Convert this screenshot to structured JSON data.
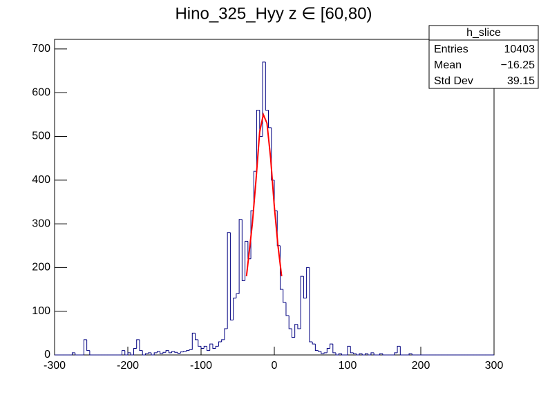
{
  "chart_data": {
    "type": "histogram",
    "title": "Hino_325_Hyy z  ∈ [60,80)",
    "bins": [
      -300,
      -296,
      -292,
      -288,
      -284,
      -280,
      -276,
      -272,
      -268,
      -264,
      -260,
      -256,
      -252,
      -248,
      -244,
      -240,
      -236,
      -232,
      -228,
      -224,
      -220,
      -216,
      -212,
      -208,
      -204,
      -200,
      -196,
      -192,
      -188,
      -184,
      -180,
      -176,
      -172,
      -168,
      -164,
      -160,
      -156,
      -152,
      -148,
      -144,
      -140,
      -136,
      -132,
      -128,
      -124,
      -120,
      -116,
      -112,
      -108,
      -104,
      -100,
      -96,
      -92,
      -88,
      -84,
      -80,
      -76,
      -72,
      -68,
      -64,
      -60,
      -56,
      -52,
      -48,
      -44,
      -40,
      -36,
      -32,
      -28,
      -24,
      -20,
      -16,
      -12,
      -8,
      -4,
      0,
      4,
      8,
      12,
      16,
      20,
      24,
      28,
      32,
      36,
      40,
      44,
      48,
      52,
      56,
      60,
      64,
      68,
      72,
      76,
      80,
      84,
      88,
      92,
      96,
      100,
      104,
      108,
      112,
      116,
      120,
      124,
      128,
      132,
      136,
      140,
      144,
      148,
      152,
      156,
      160,
      164,
      168,
      172,
      176,
      180,
      184,
      188,
      192,
      196,
      200,
      204,
      208,
      212,
      216,
      220,
      224,
      228,
      232,
      236,
      240,
      244,
      248,
      252,
      256,
      260,
      264,
      268,
      272,
      276,
      280,
      284,
      288,
      292,
      296,
      300
    ],
    "values": [
      0,
      0,
      0,
      0,
      0,
      0,
      5,
      0,
      0,
      0,
      35,
      10,
      0,
      0,
      0,
      0,
      0,
      0,
      0,
      0,
      0,
      0,
      0,
      10,
      0,
      5,
      0,
      15,
      35,
      10,
      0,
      3,
      5,
      0,
      5,
      8,
      3,
      6,
      10,
      5,
      8,
      6,
      4,
      7,
      8,
      10,
      12,
      50,
      35,
      20,
      15,
      20,
      10,
      25,
      15,
      20,
      30,
      35,
      60,
      280,
      80,
      130,
      140,
      310,
      170,
      260,
      220,
      330,
      420,
      560,
      500,
      670,
      560,
      520,
      400,
      330,
      250,
      150,
      120,
      90,
      60,
      40,
      70,
      60,
      180,
      130,
      200,
      30,
      25,
      10,
      8,
      3,
      5,
      15,
      25,
      5,
      0,
      3,
      0,
      0,
      20,
      5,
      3,
      0,
      3,
      0,
      3,
      0,
      5,
      0,
      0,
      3,
      0,
      0,
      0,
      0,
      5,
      20,
      0,
      0,
      0,
      3,
      0,
      0,
      0,
      0,
      0,
      0,
      0,
      0,
      0,
      0,
      0,
      0,
      0,
      0,
      0,
      0,
      0,
      0,
      0,
      0,
      0,
      0,
      0,
      0,
      0,
      0,
      0,
      0
    ],
    "color": "#000080",
    "fit": {
      "color": "#ff0000",
      "x": [
        -38,
        -34,
        -30,
        -25,
        -20,
        -15,
        -10,
        -5,
        0,
        5,
        10
      ],
      "values": [
        180,
        240,
        300,
        400,
        510,
        550,
        530,
        450,
        340,
        250,
        180
      ]
    },
    "xlim": [
      -300,
      300
    ],
    "xticks": [
      -300,
      -200,
      -100,
      0,
      100,
      200,
      300
    ],
    "ylim": [
      0,
      722
    ],
    "yticks": [
      0,
      100,
      200,
      300,
      400,
      500,
      600,
      700
    ],
    "stats": {
      "title": "h_slice",
      "rows": [
        [
          "Entries",
          "10403"
        ],
        [
          "Mean",
          "−16.25"
        ],
        [
          "Std Dev",
          "39.15"
        ]
      ]
    }
  }
}
